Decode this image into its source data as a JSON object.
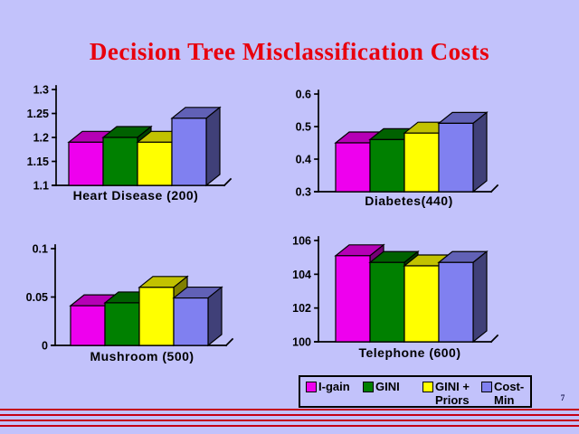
{
  "slide": {
    "title": "Decision Tree Misclassification Costs",
    "page_number": "7"
  },
  "colors": {
    "background": "#C2C2FB",
    "title_text": "#E8000D",
    "footer_lines": "#C40014",
    "axis": "#000000",
    "label_text": "#000000"
  },
  "legend": {
    "position": "bottom-right",
    "items": [
      {
        "label": "I-gain",
        "color": "#EE00EE"
      },
      {
        "label": "GINI",
        "color": "#008000"
      },
      {
        "label": "GINI +\nPriors",
        "color": "#FFFF00"
      },
      {
        "label": "Cost-\nMin",
        "color": "#8080F0"
      }
    ]
  },
  "chart_style": {
    "style": "3d-bar",
    "grid": false,
    "series_names": [
      "I-gain",
      "GINI",
      "GINI + Priors",
      "Cost-Min"
    ],
    "series_colors": [
      "#EE00EE",
      "#008000",
      "#FFFF00",
      "#8080F0"
    ]
  },
  "chart_data": [
    {
      "type": "bar",
      "title": "Heart Disease (200)",
      "categories": [
        "I-gain",
        "GINI",
        "GINI + Priors",
        "Cost-Min"
      ],
      "values": [
        1.19,
        1.2,
        1.19,
        1.24
      ],
      "ylim": [
        1.1,
        1.3
      ],
      "yticks": [
        1.1,
        1.15,
        1.2,
        1.25,
        1.3
      ],
      "ytick_labels": [
        "1.1",
        "1.15",
        "1.2",
        "1.25",
        "1.3"
      ],
      "xlabel": "Heart Disease (200)",
      "ylabel": ""
    },
    {
      "type": "bar",
      "title": "Diabetes(440)",
      "categories": [
        "I-gain",
        "GINI",
        "GINI + Priors",
        "Cost-Min"
      ],
      "values": [
        0.45,
        0.46,
        0.48,
        0.51
      ],
      "ylim": [
        0.3,
        0.6
      ],
      "yticks": [
        0.3,
        0.4,
        0.5,
        0.6
      ],
      "ytick_labels": [
        "0.3",
        "0.4",
        "0.5",
        "0.6"
      ],
      "xlabel": "Diabetes(440)",
      "ylabel": ""
    },
    {
      "type": "bar",
      "title": "Mushroom (500)",
      "categories": [
        "I-gain",
        "GINI",
        "GINI + Priors",
        "Cost-Min"
      ],
      "values": [
        0.041,
        0.044,
        0.06,
        0.049
      ],
      "ylim": [
        0,
        0.1
      ],
      "yticks": [
        0,
        0.05,
        0.1
      ],
      "ytick_labels": [
        "0",
        "0.05",
        "0.1"
      ],
      "xlabel": "Mushroom (500)",
      "ylabel": ""
    },
    {
      "type": "bar",
      "title": "Telephone (600)",
      "categories": [
        "I-gain",
        "GINI",
        "GINI + Priors",
        "Cost-Min"
      ],
      "values": [
        105.1,
        104.7,
        104.5,
        104.7
      ],
      "ylim": [
        100,
        106
      ],
      "yticks": [
        100,
        102,
        104,
        106
      ],
      "ytick_labels": [
        "100",
        "102",
        "104",
        "106"
      ],
      "xlabel": "Telephone (600)",
      "ylabel": ""
    }
  ]
}
